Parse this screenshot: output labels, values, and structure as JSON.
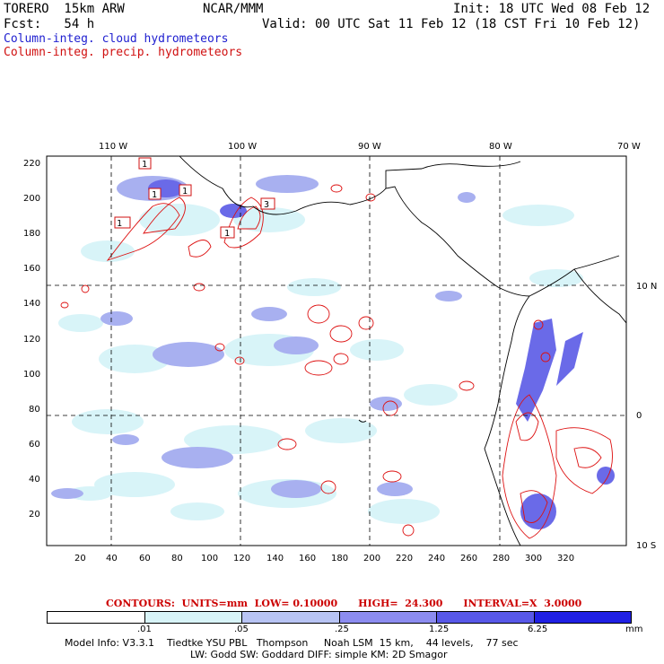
{
  "header": {
    "model": "TORERO  15km ARW",
    "org": "NCAR/MMM",
    "init": "Init: 18 UTC Wed 08 Feb 12",
    "fcst": "Fcst:   54 h",
    "valid": "Valid: 00 UTC Sat 11 Feb 12 (18 CST Fri 10 Feb 12)",
    "field_cloud": "Column-integ. cloud hydrometeors",
    "field_precip": "Column-integ. precip. hydrometeors"
  },
  "axes": {
    "top_lon_labels": [
      "110 W",
      "100 W",
      "90 W",
      "80 W",
      "70 W"
    ],
    "right_lat_labels": [
      "10 N",
      "0",
      "10 S"
    ],
    "left_ticks": [
      "220",
      "200",
      "180",
      "160",
      "140",
      "120",
      "100",
      "80",
      "60",
      "40",
      "20"
    ],
    "bottom_ticks": [
      "20",
      "40",
      "60",
      "80",
      "100",
      "120",
      "140",
      "160",
      "180",
      "200",
      "220",
      "240",
      "260",
      "280",
      "300",
      "320"
    ]
  },
  "contour_info": "CONTOURS:  UNITS=mm  LOW= 0.10000      HIGH=  24.300      INTERVAL=X  3.0000",
  "colorbar": {
    "unit": "mm",
    "labels": [
      ".01",
      ".05",
      ".25",
      "1.25",
      "6.25"
    ],
    "colors": [
      "#ffffff",
      "#d8f4f8",
      "#b8c4f4",
      "#8c8cf0",
      "#5858e8",
      "#2020e4"
    ]
  },
  "model_info": {
    "line1": "Model Info: V3.3.1    Tiedtke YSU PBL   Thompson     Noah LSM  15 km,    44 levels,    77 sec",
    "line2": "LW: Godd SW: Goddard DIFF: simple KM: 2D Smagor"
  },
  "box_labels": [
    "1",
    "1",
    "1",
    "1",
    "1",
    "3"
  ]
}
